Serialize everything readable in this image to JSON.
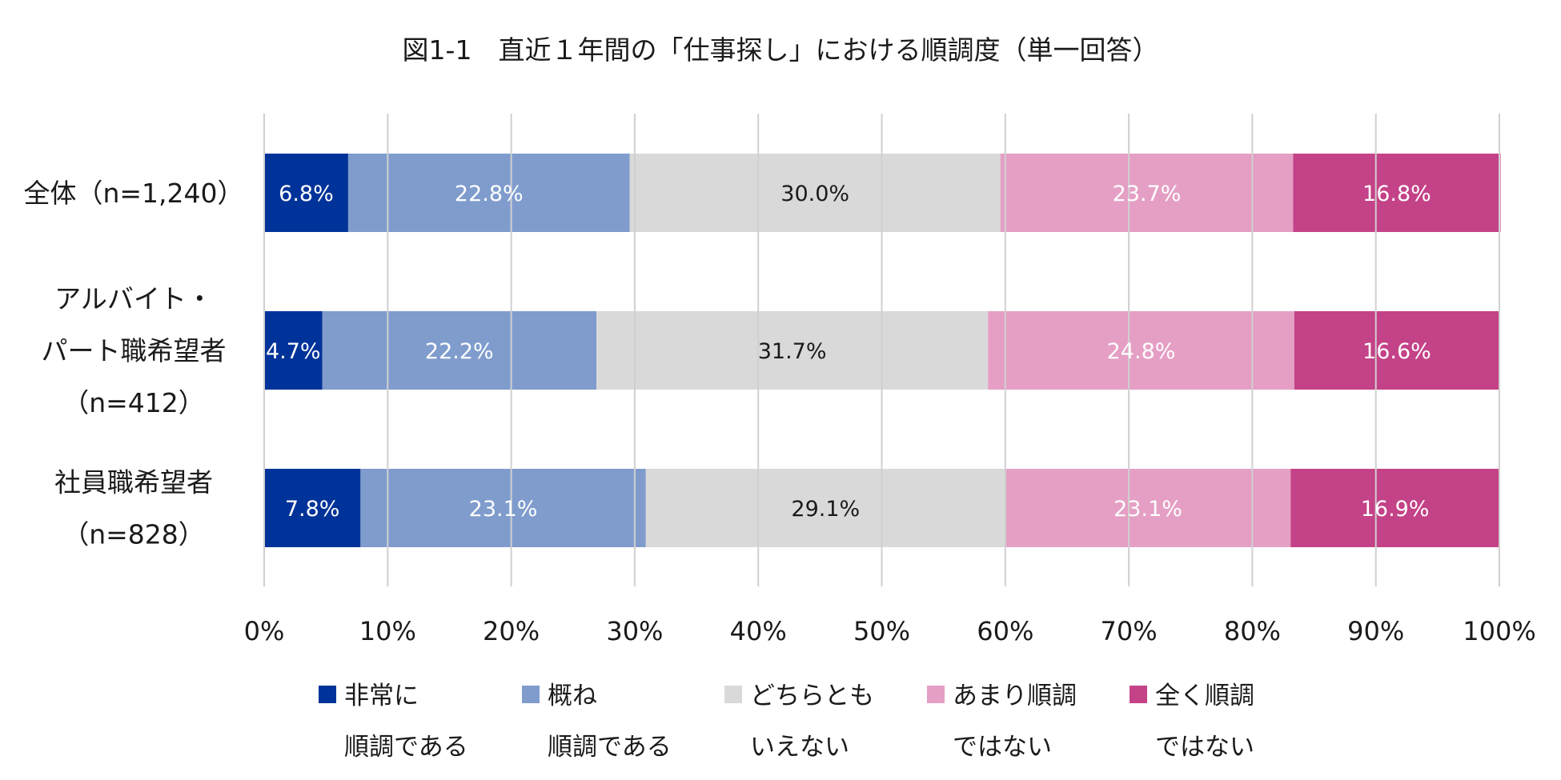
{
  "chart_data": {
    "type": "bar",
    "orientation": "horizontal",
    "stacked": true,
    "title": "図1-1　直近１年間の「仕事探し」における順調度（単一回答）",
    "categories": [
      [
        "全体（n=1,240）"
      ],
      [
        "アルバイト・",
        "パート職希望者",
        "（n=412）"
      ],
      [
        "社員職希望者",
        "（n=828）"
      ]
    ],
    "xlim": [
      0,
      100
    ],
    "xticks": [
      "0%",
      "10%",
      "20%",
      "30%",
      "40%",
      "50%",
      "60%",
      "70%",
      "80%",
      "90%",
      "100%"
    ],
    "grid": true,
    "legend_position": "bottom",
    "series": [
      {
        "name": [
          "非常に",
          "順調である"
        ],
        "color": "#003399",
        "label_color": "#ffffff",
        "values": [
          6.8,
          4.7,
          7.8
        ],
        "labels": [
          "6.8%",
          "4.7%",
          "7.8%"
        ]
      },
      {
        "name": [
          "概ね",
          "順調である"
        ],
        "color": "#7f9ccd",
        "label_color": "#ffffff",
        "values": [
          22.8,
          22.2,
          23.1
        ],
        "labels": [
          "22.8%",
          "22.2%",
          "23.1%"
        ]
      },
      {
        "name": [
          "どちらとも",
          "いえない"
        ],
        "color": "#d9d9d9",
        "label_color": "#1a1a1a",
        "values": [
          30.0,
          31.7,
          29.1
        ],
        "labels": [
          "30.0%",
          "31.7%",
          "29.1%"
        ]
      },
      {
        "name": [
          "あまり順調",
          "ではない"
        ],
        "color": "#e59fc4",
        "label_color": "#ffffff",
        "values": [
          23.7,
          24.8,
          23.1
        ],
        "labels": [
          "23.7%",
          "24.8%",
          "23.1%"
        ]
      },
      {
        "name": [
          "全く順調",
          "ではない"
        ],
        "color": "#c44287",
        "label_color": "#ffffff",
        "values": [
          16.8,
          16.6,
          16.9
        ],
        "labels": [
          "16.8%",
          "16.6%",
          "16.9%"
        ]
      }
    ]
  }
}
